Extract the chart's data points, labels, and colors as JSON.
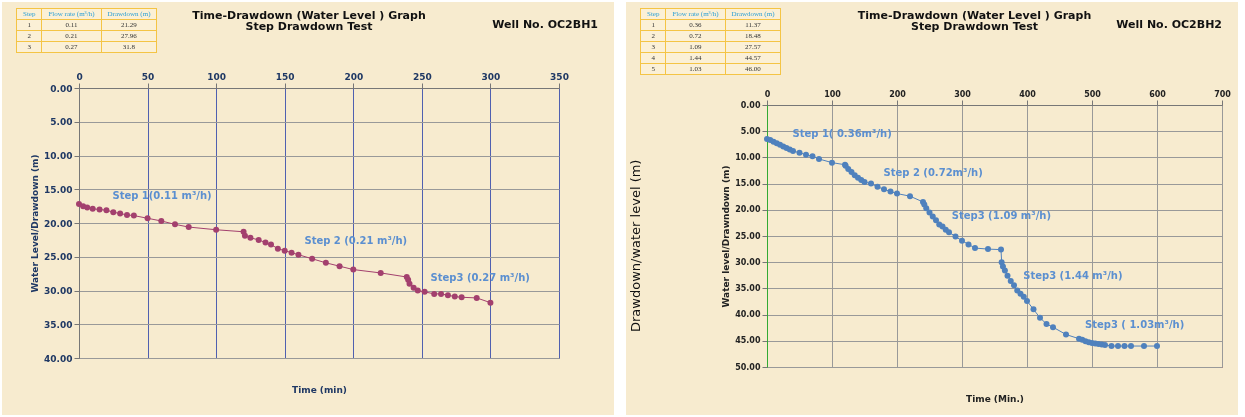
{
  "chart_data": [
    {
      "type": "line",
      "title": "Time-Drawdown (Water Level ) Graph",
      "subtitle": "Step Drawdown Test",
      "xlabel": "Time (min)",
      "ylabel": "Water Level/Drawdown (m)",
      "xlim": [
        0,
        350
      ],
      "xticks": [
        0,
        50,
        100,
        150,
        200,
        250,
        300,
        350
      ],
      "ylim": [
        40,
        0
      ],
      "yticks": [
        {
          "value": 0,
          "label": "0.00"
        },
        {
          "value": 5,
          "label": "5.00"
        },
        {
          "value": 10,
          "label": "10.00"
        },
        {
          "value": 15,
          "label": "15.00"
        },
        {
          "value": 20,
          "label": "20.00"
        },
        {
          "value": 25,
          "label": "25.00"
        },
        {
          "value": 30,
          "label": "30.00"
        },
        {
          "value": 35,
          "label": "35.00"
        },
        {
          "value": 40,
          "label": "40.00"
        }
      ],
      "grid": true,
      "marker": "circle",
      "series": [
        {
          "color": "#a3406e",
          "x": [
            0,
            3,
            6,
            10,
            15,
            20,
            25,
            30,
            35,
            40,
            50,
            60,
            70,
            80,
            100,
            120,
            121,
            125,
            131,
            136,
            140,
            145,
            150,
            155,
            160,
            170,
            180,
            190,
            200,
            220,
            239,
            240,
            241,
            244,
            247,
            252,
            259,
            264,
            269,
            274,
            279,
            290,
            300
          ],
          "values": [
            17.2,
            17.5,
            17.7,
            17.9,
            18.0,
            18.1,
            18.4,
            18.6,
            18.8,
            18.9,
            19.3,
            19.7,
            20.2,
            20.6,
            21.0,
            21.3,
            21.9,
            22.2,
            22.5,
            22.9,
            23.2,
            23.8,
            24.1,
            24.4,
            24.7,
            25.3,
            25.9,
            26.4,
            26.9,
            27.4,
            28.0,
            28.4,
            29.0,
            29.6,
            30.0,
            30.2,
            30.5,
            30.5,
            30.7,
            30.9,
            31.0,
            31.1,
            31.8
          ]
        }
      ],
      "annotations": [
        "Well No. OC2BH1",
        "Step",
        "Flow rate (m³/h)",
        "Drawdown (m)",
        "1",
        "0.11",
        "21.29",
        "2",
        "0.21",
        "27.96",
        "3",
        "0.27",
        "31.8",
        {
          "text": "Step 1(0.11 m³/h)",
          "x": 20,
          "y": 18.1
        },
        {
          "text": "Step 2 (0.21 m³/h)",
          "x": 160,
          "y": 24.7
        },
        {
          "text": "Step3 (0.27 m³/h)",
          "x": 252,
          "y": 30.2
        }
      ]
    },
    {
      "type": "line",
      "title": "Time-Drawdown (Water Level ) Graph",
      "subtitle": "Step Drawdown Test",
      "xlabel": "Time (Min.)",
      "ylabel": "Water level/Drawndown (m)",
      "xlim": [
        0,
        700
      ],
      "xticks": [
        0,
        100,
        200,
        300,
        400,
        500,
        600,
        700
      ],
      "ylim": [
        50,
        0
      ],
      "yticks": [
        {
          "value": 0,
          "label": "0.00"
        },
        {
          "value": 5,
          "label": "5.00"
        },
        {
          "value": 10,
          "label": "10.00"
        },
        {
          "value": 15,
          "label": "15.00"
        },
        {
          "value": 20,
          "label": "20.00"
        },
        {
          "value": 25,
          "label": "25.00"
        },
        {
          "value": 30,
          "label": "30.00"
        },
        {
          "value": 35,
          "label": "35.00"
        },
        {
          "value": 40,
          "label": "40.00"
        },
        {
          "value": 45,
          "label": "45.00"
        },
        {
          "value": 50,
          "label": "50.00"
        }
      ],
      "grid": true,
      "marker": "circle",
      "series": [
        {
          "color": "#4f81bd",
          "x": [
            0,
            5,
            10,
            15,
            20,
            25,
            30,
            35,
            40,
            50,
            60,
            70,
            80,
            100,
            120,
            121,
            125,
            130,
            135,
            140,
            145,
            150,
            160,
            170,
            180,
            190,
            200,
            220,
            240,
            242,
            245,
            250,
            255,
            260,
            265,
            270,
            275,
            280,
            290,
            300,
            310,
            320,
            340,
            360,
            361,
            363,
            366,
            370,
            375,
            380,
            385,
            390,
            395,
            400,
            410,
            420,
            430,
            440,
            460,
            480,
            485,
            490,
            495,
            500,
            505,
            510,
            515,
            520,
            530,
            540,
            550,
            560,
            580,
            600
          ],
          "values": [
            6.5,
            6.7,
            7.0,
            7.3,
            7.6,
            7.9,
            8.2,
            8.5,
            8.8,
            9.1,
            9.5,
            9.8,
            10.3,
            11.0,
            11.4,
            11.6,
            12.2,
            12.8,
            13.4,
            13.9,
            14.3,
            14.7,
            15.0,
            15.6,
            16.1,
            16.5,
            16.9,
            17.4,
            18.5,
            19.0,
            19.7,
            20.5,
            21.3,
            22.0,
            22.8,
            23.2,
            23.8,
            24.3,
            25.1,
            25.9,
            26.6,
            27.3,
            27.5,
            27.6,
            30.0,
            30.8,
            31.6,
            32.6,
            33.6,
            34.4,
            35.4,
            36.0,
            36.6,
            37.4,
            39.0,
            40.6,
            41.8,
            42.4,
            43.8,
            44.6,
            44.8,
            45.1,
            45.3,
            45.4,
            45.5,
            45.6,
            45.7,
            45.8,
            46.0,
            46.0,
            46.0,
            46.0,
            46.0,
            46.0
          ]
        }
      ],
      "annotations": [
        "Well No. OC2BH2",
        "Drawdown/water level (m)",
        "Step",
        "Flow rate (m³/h)",
        "Drawdown (m)",
        "1",
        "0.36",
        "11.37",
        "2",
        "0.72",
        "18.48",
        "3",
        "1.09",
        "27.57",
        "4",
        "1.44",
        "44.57",
        "5",
        "1.03",
        "46.00",
        {
          "text": "Step 1( 0.36m³/h)",
          "x": 30,
          "y": 8.2
        },
        {
          "text": "Step 2 (0.72m³/h)",
          "x": 170,
          "y": 15.6
        },
        {
          "text": "Step3 (1.09 m³/h)",
          "x": 275,
          "y": 23.8
        },
        {
          "text": "Step3 (1.44 m³/h)",
          "x": 385,
          "y": 35.4
        },
        {
          "text": "Step3 ( 1.03m³/h)",
          "x": 480,
          "y": 44.6
        }
      ]
    }
  ]
}
